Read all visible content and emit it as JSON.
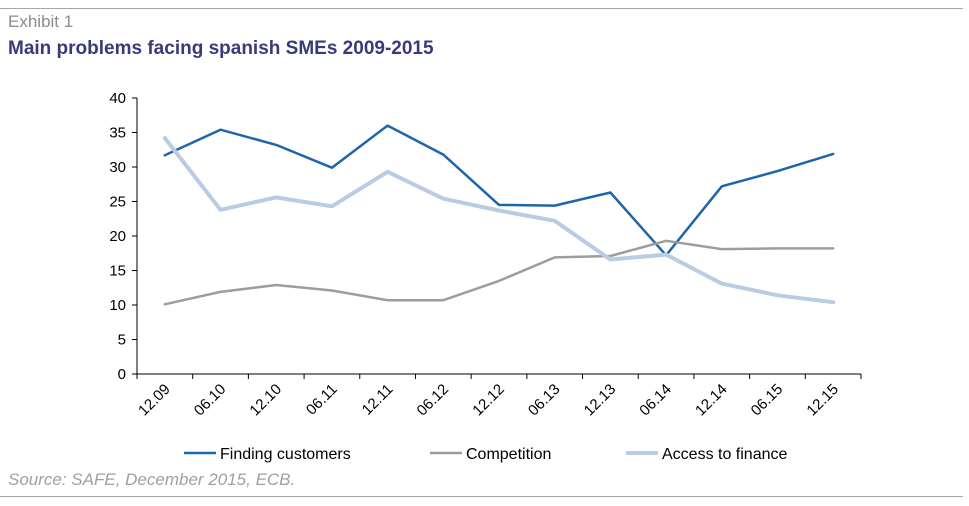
{
  "header": {
    "exhibit": "Exhibit 1",
    "title": "Main problems facing spanish SMEs 2009-2015"
  },
  "footer": {
    "source": "Source: SAFE, December 2015, ECB."
  },
  "chart_data": {
    "type": "line",
    "title": "Main problems facing spanish SMEs 2009-2015",
    "xlabel": "",
    "ylabel": "",
    "ylim": [
      0,
      40
    ],
    "yticks": [
      0,
      5,
      10,
      15,
      20,
      25,
      30,
      35,
      40
    ],
    "grid": false,
    "legend_position": "bottom",
    "categories": [
      "12.09",
      "06.10",
      "12.10",
      "06.11",
      "12.11",
      "06.12",
      "12.12",
      "06.13",
      "12.13",
      "06.14",
      "12.14",
      "06.15",
      "12.15"
    ],
    "series": [
      {
        "name": "Finding customers",
        "color": "#1f66a8",
        "values": [
          31.7,
          35.4,
          33.2,
          29.9,
          36.0,
          31.8,
          24.5,
          24.4,
          26.3,
          17.2,
          27.2,
          29.4,
          31.9
        ]
      },
      {
        "name": "Competition",
        "color": "#9d9d9d",
        "values": [
          10.1,
          11.9,
          12.9,
          12.1,
          10.7,
          10.7,
          13.5,
          16.9,
          17.1,
          19.3,
          18.1,
          18.2,
          18.2
        ]
      },
      {
        "name": "Access to finance",
        "color": "#b9cce4",
        "values": [
          34.2,
          23.8,
          25.6,
          24.3,
          29.3,
          25.4,
          23.7,
          22.2,
          16.6,
          17.3,
          13.1,
          11.4,
          10.4
        ]
      }
    ]
  }
}
